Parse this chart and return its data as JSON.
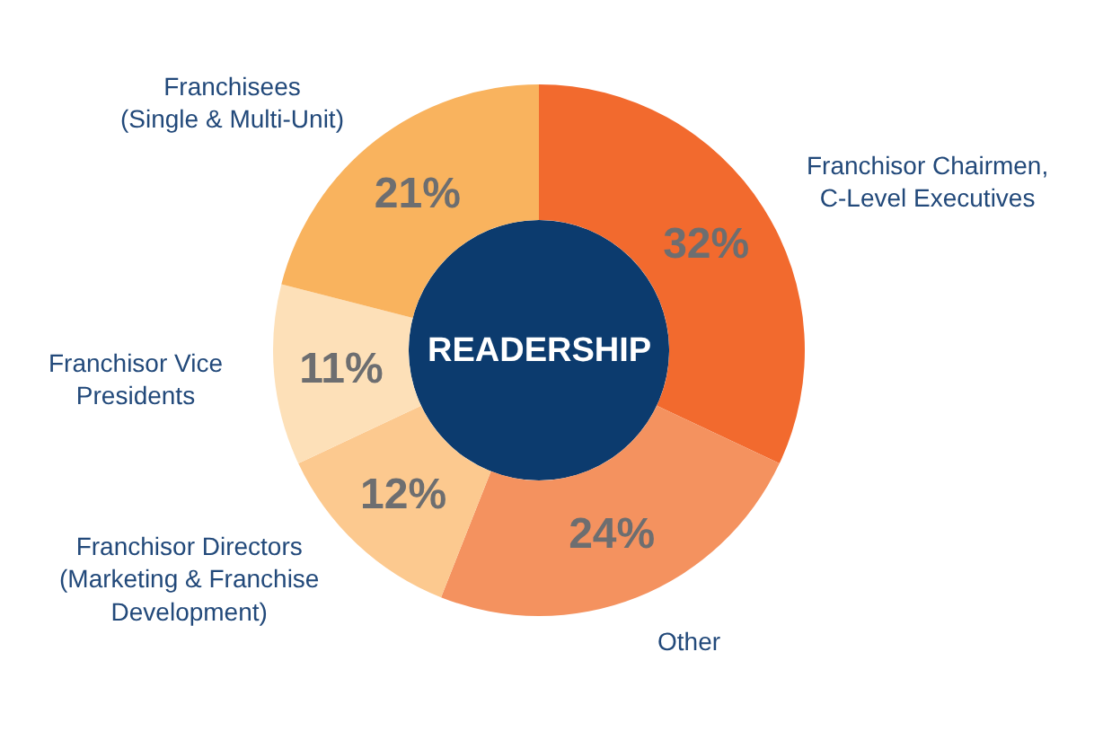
{
  "chart_data": {
    "type": "donut",
    "categories": [
      "Franchisor Chairmen,\nC-Level Executives",
      "Other",
      "Franchisor Directors\n(Marketing & Franchise\nDevelopment)",
      "Franchisor Vice\nPresidents",
      "Franchisees\n(Single & Multi-Unit)"
    ],
    "values": [
      32,
      24,
      12,
      11,
      21
    ],
    "colors": [
      "#f26a2e",
      "#f4925f",
      "#fcc98f",
      "#fde0b8",
      "#f9b35e"
    ],
    "value_labels": [
      "32%",
      "24%",
      "12%",
      "11%",
      "21%"
    ],
    "annotations": [
      "READERSHIP"
    ]
  }
}
